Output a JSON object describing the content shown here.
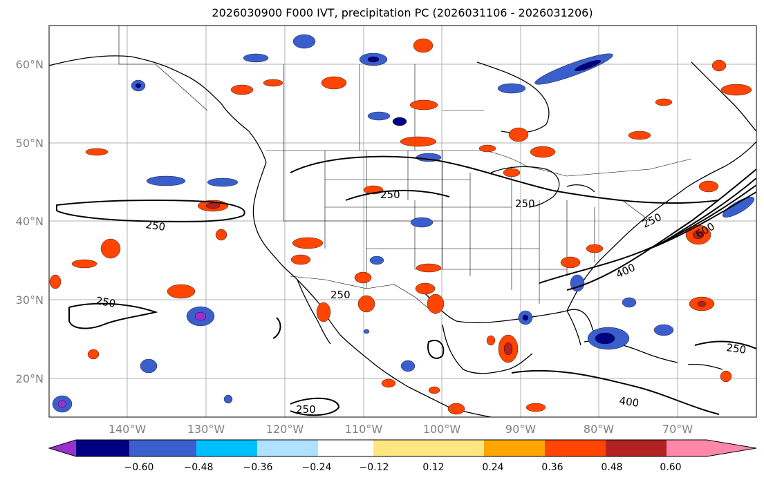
{
  "title": "2026030900 F000 IVT, precipitation PC (2026031106 - 2026031206)",
  "latitude_labels": [
    "60°N",
    "50°N",
    "40°N",
    "30°N",
    "20°N"
  ],
  "longitude_labels": [
    "140°W",
    "130°W",
    "120°W",
    "110°W",
    "100°W",
    "90°W",
    "80°W",
    "70°W"
  ],
  "colorbar": {
    "tick_labels": [
      "−0.60",
      "−0.48",
      "−0.36",
      "−0.24",
      "−0.12",
      "0.12",
      "0.24",
      "0.36",
      "0.48",
      "0.60"
    ],
    "colors": [
      "#9b30d0",
      "#000080",
      "#3a5fcd",
      "#00bfff",
      "#b0e2ff",
      "#ffffff",
      "#ffe680",
      "#ffa500",
      "#ff4500",
      "#b22222",
      "#ff88aa"
    ]
  },
  "contour_labels": [
    "250",
    "250",
    "250",
    "250",
    "250",
    "400",
    "600",
    "250",
    "400",
    "250",
    "250"
  ],
  "colors": {
    "grid": "#b0b0b0",
    "contour": "#000000",
    "coast": "#000000",
    "tick_label": "#808080"
  }
}
